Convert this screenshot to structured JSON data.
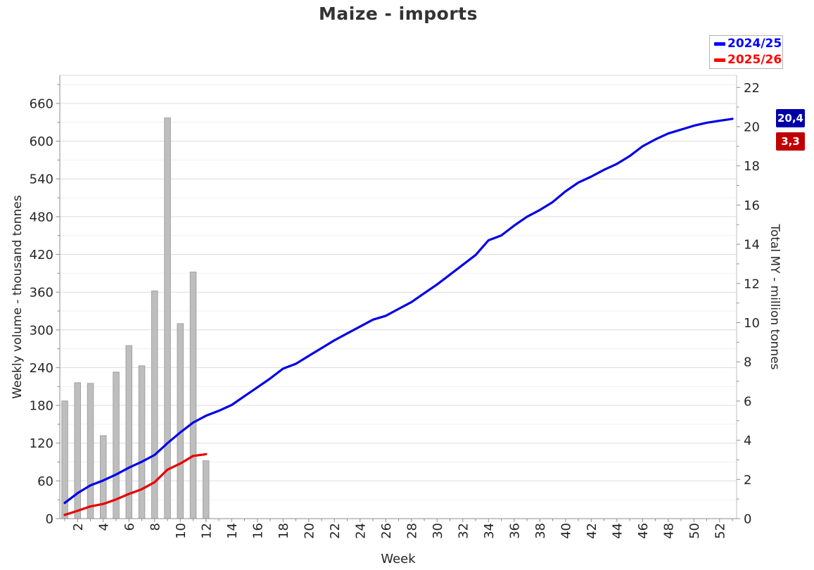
{
  "chart_data": {
    "type": "combo-bar-line",
    "title": "Maize - imports",
    "x_axis": {
      "label": "Week",
      "tick_labels": [
        2,
        4,
        6,
        8,
        10,
        12,
        14,
        16,
        18,
        20,
        22,
        24,
        26,
        28,
        30,
        32,
        34,
        36,
        38,
        40,
        42,
        44,
        46,
        48,
        50,
        52
      ],
      "weeks_min": 1,
      "weeks_max": 53
    },
    "y_left_axis": {
      "label": "Weekly volume - thousand tonnes",
      "tick_labels": [
        0,
        60,
        120,
        180,
        240,
        300,
        360,
        420,
        480,
        540,
        600,
        660
      ],
      "min": 0,
      "max": 705,
      "minor_step": 30,
      "major_step": 60
    },
    "y_right_axis": {
      "label": "Total MY - million tonnes",
      "tick_labels": [
        0,
        2,
        4,
        6,
        8,
        10,
        12,
        14,
        16,
        18,
        20,
        22
      ],
      "min": 0,
      "max": 22.6,
      "minor_step": 1,
      "major_step": 2
    },
    "grid": {
      "horizontal": true,
      "vertical": false,
      "major_color": "#DCDCDC",
      "minor_color": "#F0F0F0"
    },
    "legend": {
      "position": "top-right",
      "items": [
        {
          "label": "2024/25",
          "color": "#0000FF"
        },
        {
          "label": "2025/26",
          "color": "#FF0000"
        }
      ]
    },
    "end_value_labels": [
      {
        "text": "20,4",
        "bg_color": "#0000AA",
        "text_color": "#FFFFFF",
        "series": "2024/25"
      },
      {
        "text": "3,3",
        "bg_color": "#C00000",
        "text_color": "#FFFFFF",
        "series": "2025/26"
      }
    ],
    "series": [
      {
        "key": "2024-25",
        "name": "2024/25 cumulative total",
        "type": "line",
        "axis": "right",
        "color": "#0000E8",
        "weeks": [
          1,
          2,
          3,
          4,
          5,
          6,
          7,
          8,
          9,
          10,
          11,
          12,
          13,
          14,
          15,
          16,
          17,
          18,
          19,
          20,
          21,
          22,
          23,
          24,
          25,
          26,
          27,
          28,
          29,
          30,
          31,
          32,
          33,
          34,
          35,
          36,
          37,
          38,
          39,
          40,
          41,
          42,
          43,
          44,
          45,
          46,
          47,
          48,
          49,
          50,
          51,
          52,
          53
        ],
        "values": [
          0.8,
          1.3,
          1.7,
          1.95,
          2.25,
          2.6,
          2.9,
          3.25,
          3.85,
          4.4,
          4.9,
          5.25,
          5.5,
          5.8,
          6.25,
          6.7,
          7.15,
          7.65,
          7.9,
          8.3,
          8.7,
          9.1,
          9.45,
          9.8,
          10.15,
          10.35,
          10.7,
          11.05,
          11.5,
          11.95,
          12.45,
          12.95,
          13.45,
          14.2,
          14.45,
          14.95,
          15.4,
          15.75,
          16.15,
          16.7,
          17.15,
          17.45,
          17.8,
          18.1,
          18.5,
          19.0,
          19.35,
          19.65,
          19.85,
          20.05,
          20.2,
          20.3,
          20.4
        ]
      },
      {
        "key": "2025-26",
        "name": "2025/26 cumulative total",
        "type": "line",
        "axis": "right",
        "color": "#E80000",
        "weeks": [
          1,
          2,
          3,
          4,
          5,
          6,
          7,
          8,
          9,
          10,
          11,
          12
        ],
        "values": [
          0.19,
          0.4,
          0.62,
          0.75,
          0.98,
          1.26,
          1.5,
          1.86,
          2.5,
          2.81,
          3.2,
          3.29
        ]
      },
      {
        "key": "2025-26-weekly",
        "name": "2025/26 weekly volume",
        "type": "bar",
        "axis": "left",
        "fill": "#BEBEBE",
        "stroke": "#A1A1A1",
        "weeks": [
          1,
          2,
          3,
          4,
          5,
          6,
          7,
          8,
          9,
          10,
          11,
          12
        ],
        "values": [
          187,
          216,
          215,
          132,
          233,
          275,
          243,
          362,
          637,
          310,
          392,
          92
        ]
      }
    ]
  }
}
